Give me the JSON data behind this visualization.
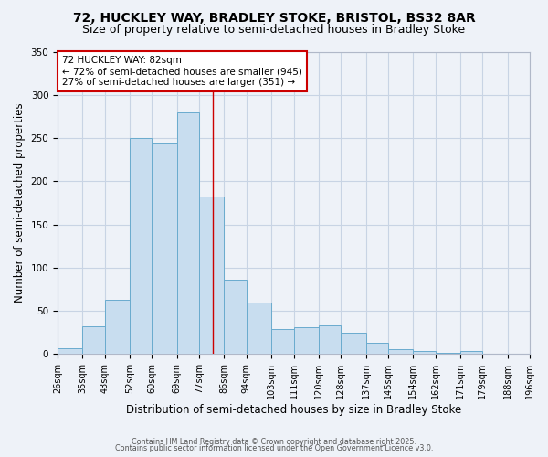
{
  "title": "72, HUCKLEY WAY, BRADLEY STOKE, BRISTOL, BS32 8AR",
  "subtitle": "Size of property relative to semi-detached houses in Bradley Stoke",
  "xlabel": "Distribution of semi-detached houses by size in Bradley Stoke",
  "ylabel": "Number of semi-detached properties",
  "bin_labels": [
    "26sqm",
    "35sqm",
    "43sqm",
    "52sqm",
    "60sqm",
    "69sqm",
    "77sqm",
    "86sqm",
    "94sqm",
    "103sqm",
    "111sqm",
    "120sqm",
    "128sqm",
    "137sqm",
    "145sqm",
    "154sqm",
    "162sqm",
    "171sqm",
    "179sqm",
    "188sqm",
    "196sqm"
  ],
  "bin_edges": [
    26,
    35,
    43,
    52,
    60,
    69,
    77,
    86,
    94,
    103,
    111,
    120,
    128,
    137,
    145,
    154,
    162,
    171,
    179,
    188,
    196
  ],
  "values": [
    7,
    32,
    63,
    250,
    244,
    280,
    182,
    86,
    60,
    29,
    31,
    33,
    25,
    13,
    6,
    4,
    2,
    4,
    1,
    0
  ],
  "bar_color": "#c8ddef",
  "bar_edge_color": "#6aabce",
  "property_size": 82,
  "annotation_title": "72 HUCKLEY WAY: 82sqm",
  "annotation_line1": "← 72% of semi-detached houses are smaller (945)",
  "annotation_line2": "27% of semi-detached houses are larger (351) →",
  "annotation_box_color": "#cc0000",
  "vline_color": "#cc0000",
  "grid_color": "#c8d4e4",
  "background_color": "#eef2f8",
  "footer1": "Contains HM Land Registry data © Crown copyright and database right 2025.",
  "footer2": "Contains public sector information licensed under the Open Government Licence v3.0.",
  "ylim": [
    0,
    350
  ],
  "title_fontsize": 10,
  "subtitle_fontsize": 9,
  "label_fontsize": 8.5,
  "tick_fontsize": 7,
  "annotation_fontsize": 7.5
}
